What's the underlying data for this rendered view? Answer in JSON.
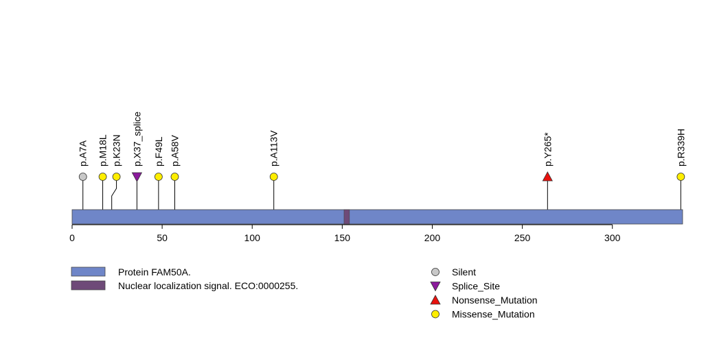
{
  "chart_data": {
    "type": "lollipop",
    "protein_length": 339,
    "x_ticks": [
      0,
      50,
      100,
      150,
      200,
      250,
      300
    ],
    "domains": [
      {
        "name": "Nuclear localization signal. ECO:0000255.",
        "start": 151,
        "end": 154,
        "color": "#6e4a78"
      }
    ],
    "protein": {
      "name": "Protein FAM50A.",
      "color": "#6f86c8"
    },
    "mutations": [
      {
        "label": "p.A7A",
        "position": 6,
        "type": "Silent"
      },
      {
        "label": "p.M18L",
        "position": 17,
        "type": "Missense_Mutation"
      },
      {
        "label": "p.K23N",
        "position": 22,
        "type": "Missense_Mutation"
      },
      {
        "label": "p.X37_splice",
        "position": 36,
        "type": "Splice_Site"
      },
      {
        "label": "p.F49L",
        "position": 48,
        "type": "Missense_Mutation"
      },
      {
        "label": "p.A58V",
        "position": 57,
        "type": "Missense_Mutation"
      },
      {
        "label": "p.A113V",
        "position": 112,
        "type": "Missense_Mutation"
      },
      {
        "label": "p.Y265*",
        "position": 264,
        "type": "Nonsense_Mutation"
      },
      {
        "label": "p.R339H",
        "position": 338,
        "type": "Missense_Mutation"
      }
    ],
    "mutation_types": [
      {
        "name": "Silent",
        "shape": "circle",
        "color": "#c8c8c8"
      },
      {
        "name": "Splice_Site",
        "shape": "triangle-down",
        "color": "#8b1a9c"
      },
      {
        "name": "Nonsense_Mutation",
        "shape": "triangle-up",
        "color": "#e8120e"
      },
      {
        "name": "Missense_Mutation",
        "shape": "circle",
        "color": "#ffee00"
      }
    ],
    "legend_domains": [
      {
        "name": "Protein FAM50A.",
        "color": "#6f86c8"
      },
      {
        "name": "Nuclear localization signal. ECO:0000255.",
        "color": "#6e4a78"
      }
    ]
  }
}
